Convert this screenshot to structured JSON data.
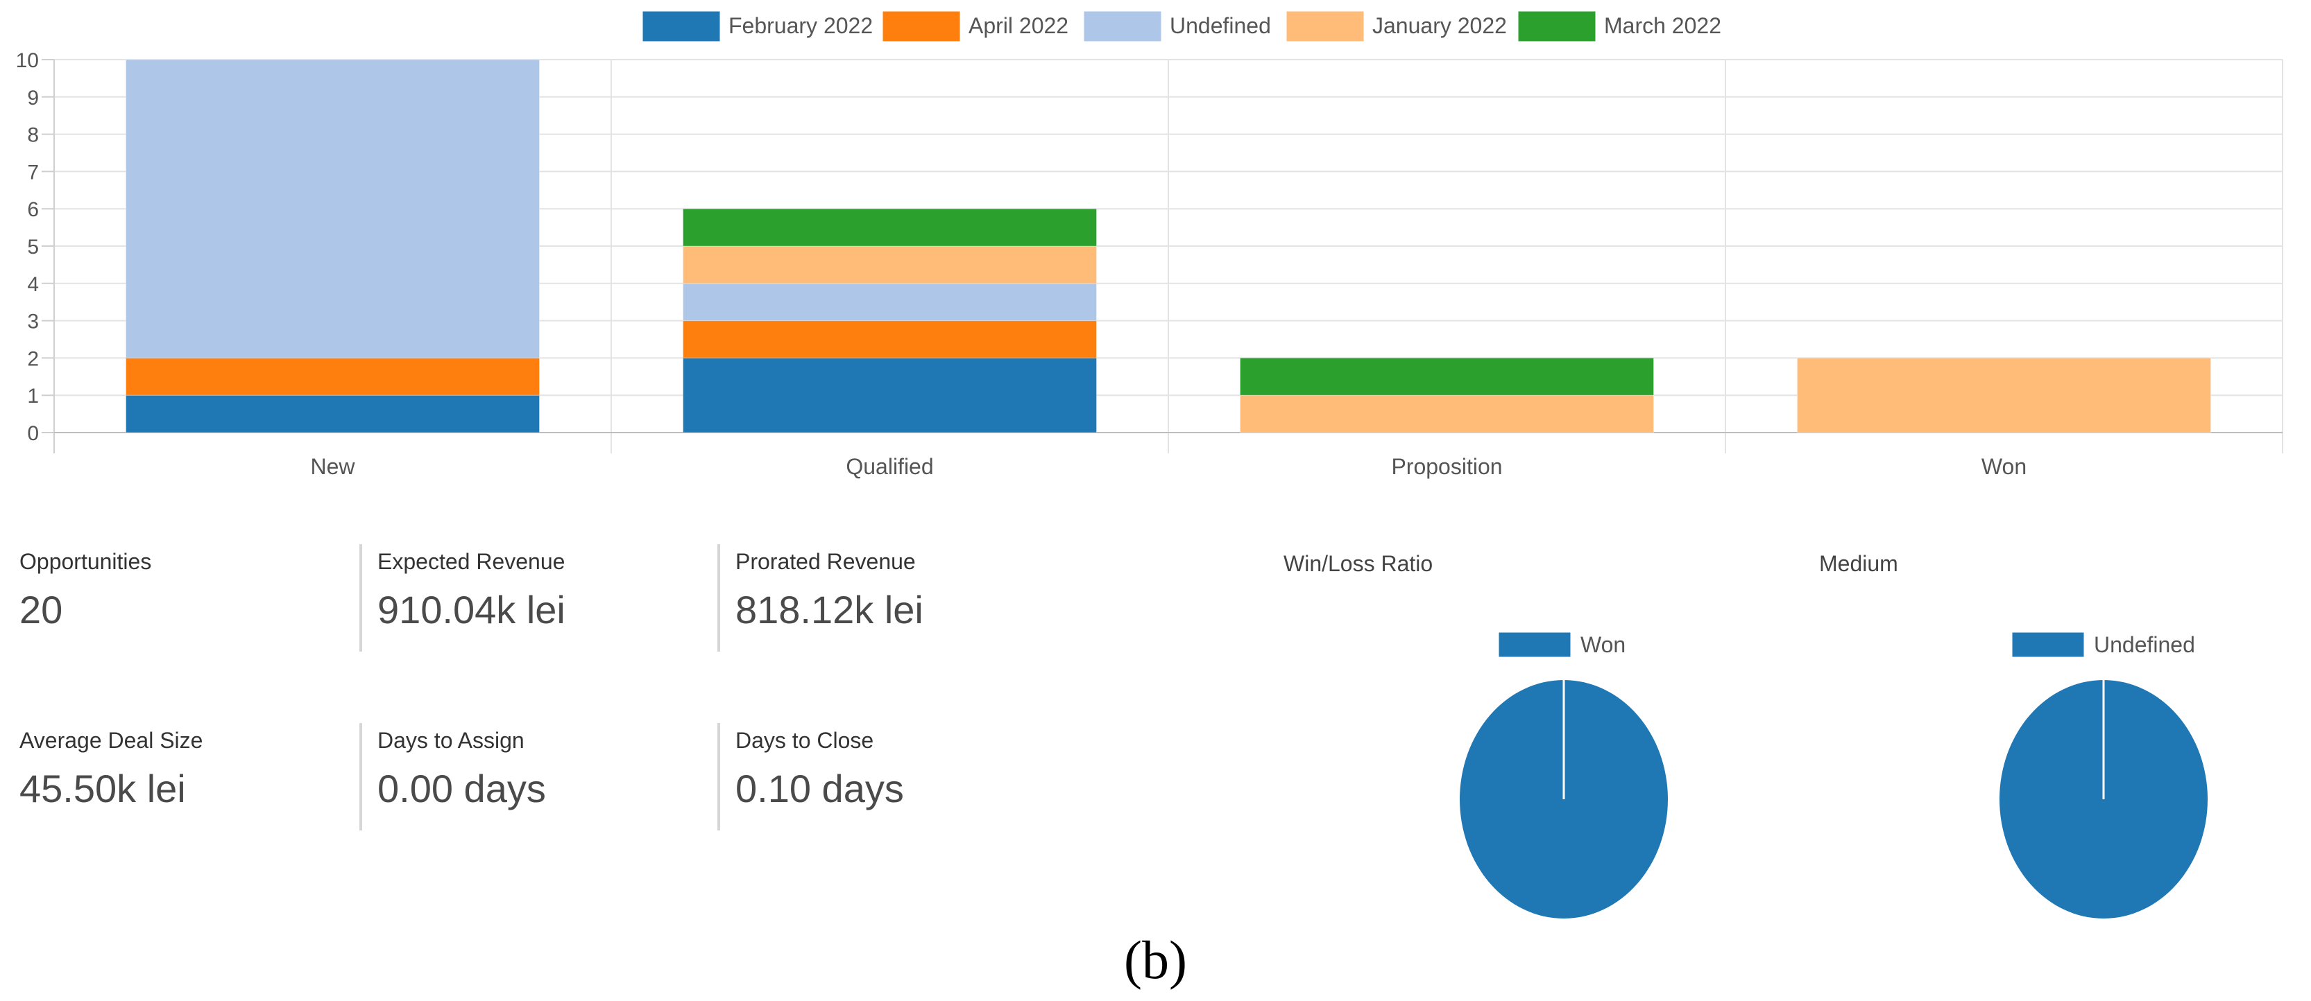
{
  "colors": {
    "February 2022": "#1f77b4",
    "April 2022": "#ff7f0e",
    "Undefined": "#aec7e8",
    "January 2022": "#ffbb78",
    "March 2022": "#2ca02c"
  },
  "chart_data": [
    {
      "type": "bar",
      "stacked": true,
      "categories": [
        "New",
        "Qualified",
        "Proposition",
        "Won"
      ],
      "legend_position": "top-center",
      "ylim": [
        0,
        10
      ],
      "yticks": [
        0,
        1,
        2,
        3,
        4,
        5,
        6,
        7,
        8,
        9,
        10
      ],
      "grid": true,
      "series": [
        {
          "name": "February 2022",
          "values": [
            1,
            2,
            0,
            0
          ]
        },
        {
          "name": "April 2022",
          "values": [
            1,
            1,
            0,
            0
          ]
        },
        {
          "name": "Undefined",
          "values": [
            8,
            1,
            0,
            0
          ]
        },
        {
          "name": "January 2022",
          "values": [
            0,
            1,
            1,
            2
          ]
        },
        {
          "name": "March 2022",
          "values": [
            0,
            1,
            1,
            0
          ]
        }
      ]
    },
    {
      "type": "pie",
      "title": "Win/Loss Ratio",
      "labels": [
        "Won"
      ],
      "values": [
        1
      ]
    },
    {
      "type": "pie",
      "title": "Medium",
      "labels": [
        "Undefined"
      ],
      "values": [
        1
      ]
    }
  ],
  "kpis": {
    "opportunities": {
      "label": "Opportunities",
      "value": "20"
    },
    "expected_revenue": {
      "label": "Expected Revenue",
      "value": "910.04k lei"
    },
    "prorated_revenue": {
      "label": "Prorated Revenue",
      "value": "818.12k lei"
    },
    "average_deal_size": {
      "label": "Average Deal Size",
      "value": "45.50k lei"
    },
    "days_to_assign": {
      "label": "Days to Assign",
      "value": "0.00 days"
    },
    "days_to_close": {
      "label": "Days to Close",
      "value": "0.10 days"
    }
  },
  "caption": "(b)"
}
